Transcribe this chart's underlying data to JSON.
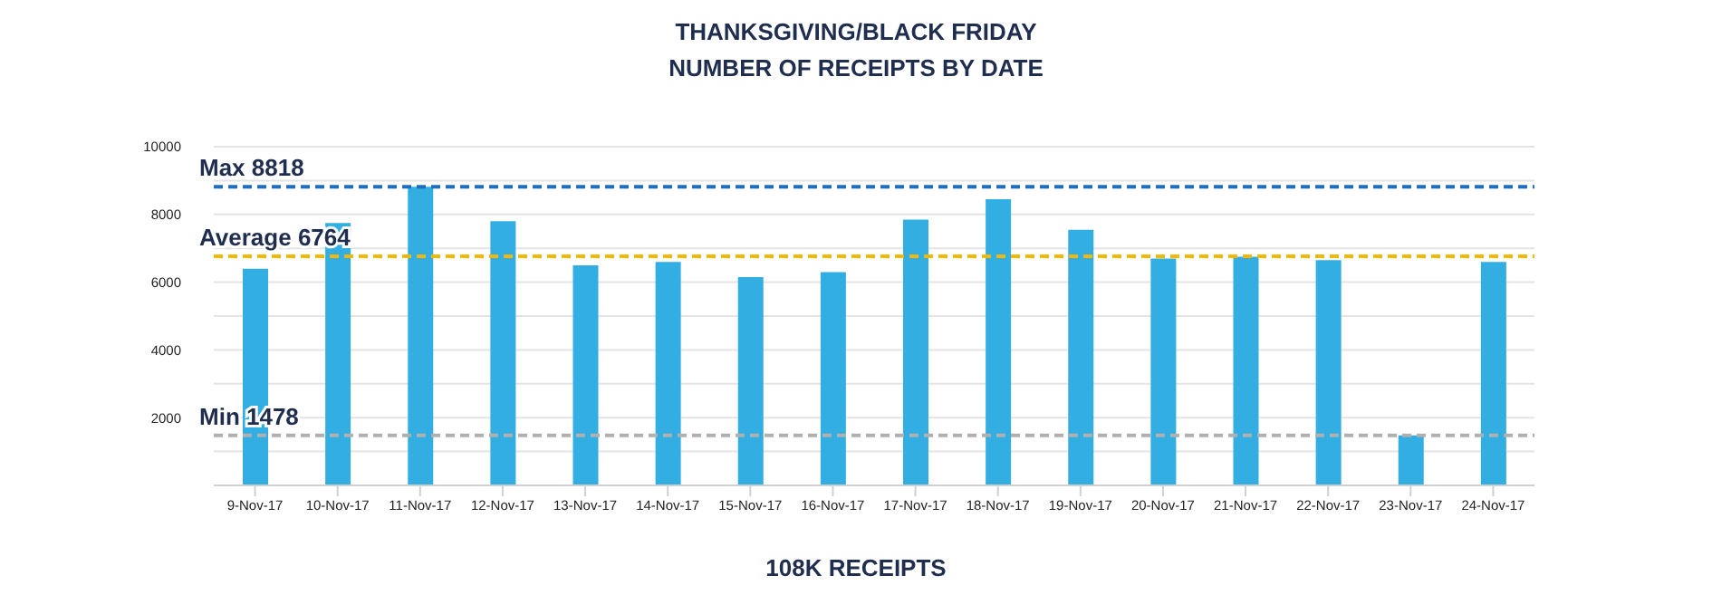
{
  "chart_data": {
    "type": "bar",
    "title": "THANKSGIVING/BLACK FRIDAY",
    "subtitle": "NUMBER OF RECEIPTS BY DATE",
    "categories": [
      "9-Nov-17",
      "10-Nov-17",
      "11-Nov-17",
      "12-Nov-17",
      "13-Nov-17",
      "14-Nov-17",
      "15-Nov-17",
      "16-Nov-17",
      "17-Nov-17",
      "18-Nov-17",
      "19-Nov-17",
      "20-Nov-17",
      "21-Nov-17",
      "22-Nov-17",
      "23-Nov-17",
      "24-Nov-17"
    ],
    "series": [
      {
        "color": "#33aee3",
        "values": [
          6400,
          7750,
          8818,
          7800,
          6500,
          6600,
          6150,
          6300,
          7850,
          8450,
          7550,
          6700,
          6750,
          6650,
          1478,
          6600
        ]
      }
    ],
    "ylim": [
      0,
      10000
    ],
    "yticks": [
      {
        "value": 0,
        "label": null
      },
      {
        "value": 1000,
        "label": null
      },
      2000,
      {
        "value": 3000,
        "label": null
      },
      4000,
      {
        "value": 5000,
        "label": null
      },
      6000,
      {
        "value": 7000,
        "label": null
      },
      8000,
      {
        "value": 9000,
        "label": null
      },
      10000
    ],
    "grid": "y",
    "ref_lines": [
      {
        "axis": "y",
        "value": 8818,
        "label": "Max 8818",
        "color": "#1f6fc0",
        "line_style": "dashed"
      },
      {
        "axis": "y",
        "value": 6764,
        "label": "Average 6764",
        "color": "#f5b800",
        "line_style": "dashed"
      },
      {
        "axis": "y",
        "value": 1478,
        "label": "Min 1478",
        "color": "#b0b0b0",
        "line_style": "dashed"
      }
    ],
    "annotations": [
      "108K RECEIPTS"
    ]
  }
}
